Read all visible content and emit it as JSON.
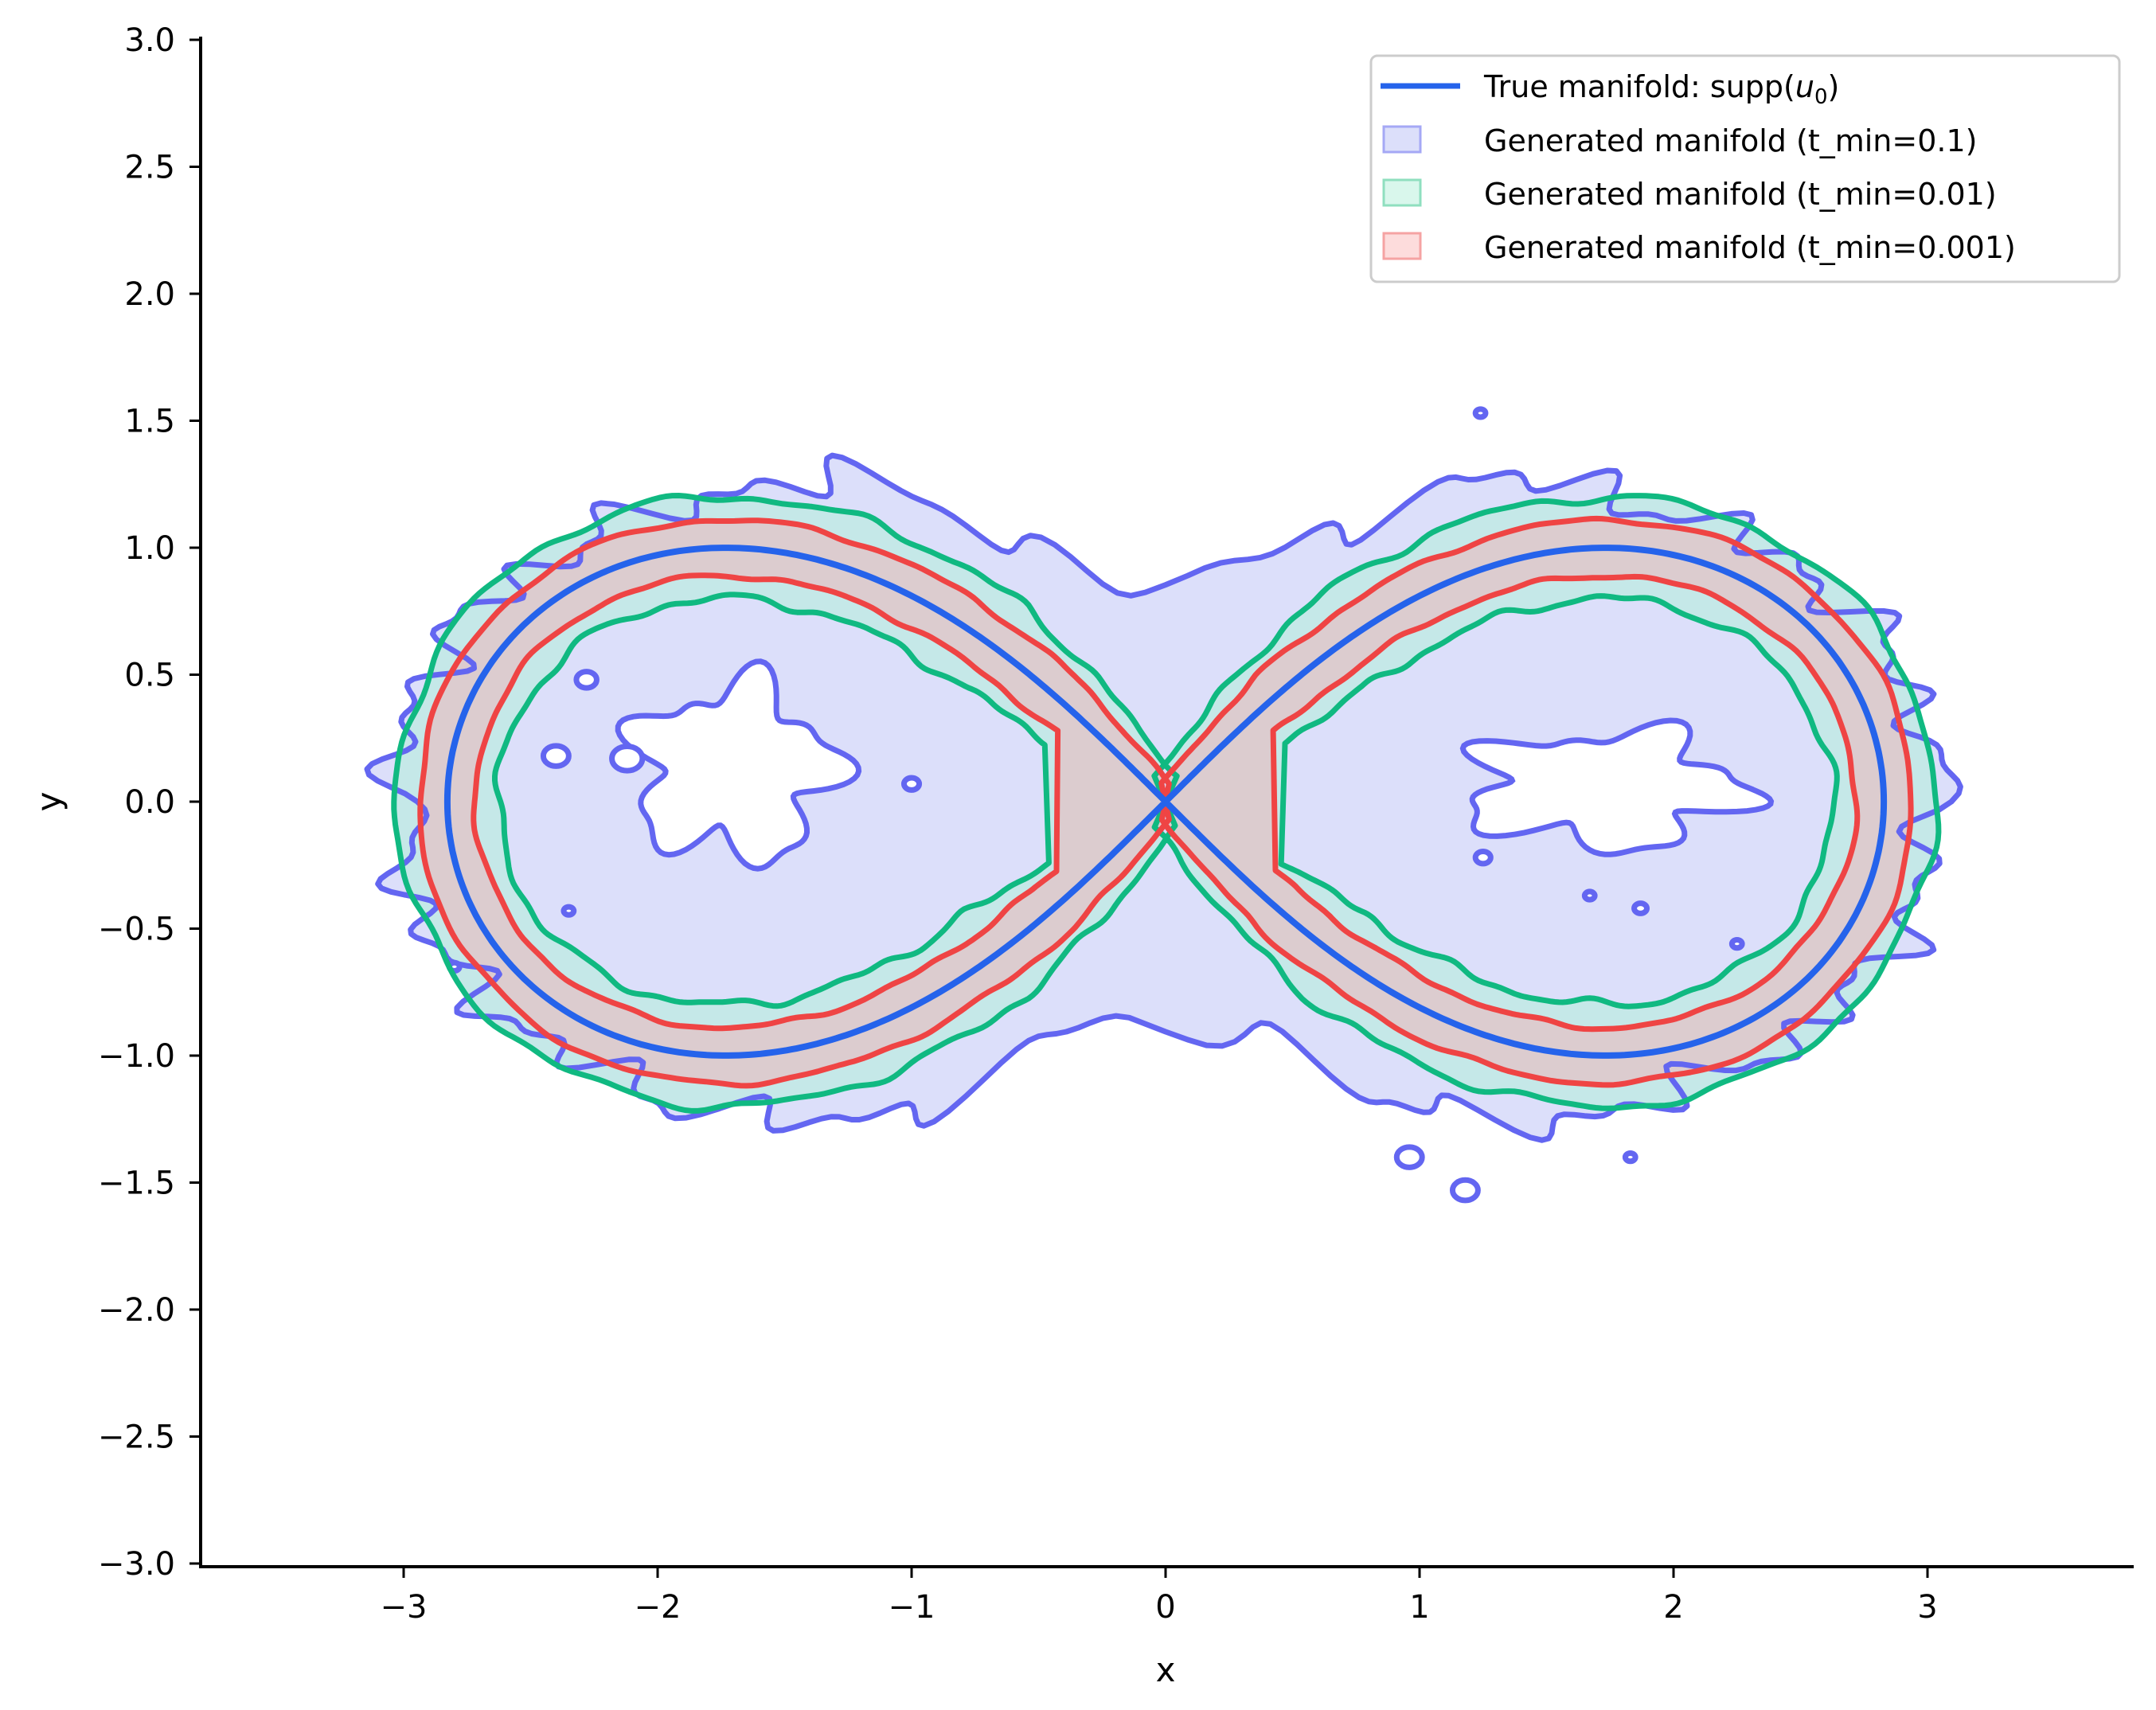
{
  "chart_data": {
    "type": "area",
    "title": "",
    "xlabel": "x",
    "ylabel": "y",
    "xlim": [
      -3.85,
      3.85
    ],
    "ylim": [
      -3.0,
      3.0
    ],
    "grid": false,
    "legend_position": "upper right",
    "x_ticks": [
      -3,
      -2,
      -1,
      0,
      1,
      2,
      3
    ],
    "x_tick_labels": [
      "−3",
      "−2",
      "−1",
      "0",
      "1",
      "2",
      "3"
    ],
    "y_ticks": [
      3.0,
      2.5,
      2.0,
      1.5,
      1.0,
      0.5,
      0.0,
      -0.5,
      -1.0,
      -1.5,
      -2.0,
      -2.5,
      -3.0
    ],
    "y_tick_labels": [
      "3.0",
      "2.5",
      "2.0",
      "1.5",
      "1.0",
      "0.5",
      "0.0",
      "−0.5",
      "−1.0",
      "−1.5",
      "−2.0",
      "−2.5",
      "−3.0"
    ],
    "true_manifold": {
      "name": "True manifold: supp(u₀)",
      "curve": "lemniscate of Bernoulli",
      "a": 2.828,
      "x_extent": [
        -2.83,
        2.83
      ],
      "y_extent": [
        -1.0,
        1.0
      ],
      "lobe_peaks": [
        [
          -1.73,
          1.0
        ],
        [
          1.73,
          1.0
        ],
        [
          -1.73,
          -1.0
        ],
        [
          1.73,
          -1.0
        ]
      ],
      "color": "#2563eb"
    },
    "series": [
      {
        "name": "Generated manifold (t_min=0.1)",
        "t_min": 0.1,
        "band_halfwidth": 0.5,
        "x_extent": [
          -3.07,
          3.1
        ],
        "y_extent": [
          -1.62,
          1.56
        ],
        "has_holes": true,
        "fill": "#dcdffa",
        "edge": "#6366f1",
        "legend_fill": "#dcdffa",
        "legend_edge": "#a5a8f5"
      },
      {
        "name": "Generated manifold (t_min=0.01)",
        "t_min": 0.01,
        "band_halfwidth": 0.2,
        "x_extent": [
          -3.0,
          3.0
        ],
        "y_extent": [
          -1.2,
          1.2
        ],
        "fill": "#c5e8e8",
        "edge": "#10b981",
        "legend_fill": "#d9f7ec",
        "legend_edge": "#8fdfbf"
      },
      {
        "name": "Generated manifold (t_min=0.001)",
        "t_min": 0.001,
        "band_halfwidth": 0.11,
        "x_extent": [
          -2.94,
          2.94
        ],
        "y_extent": [
          -1.11,
          1.11
        ],
        "fill": "#dccccf",
        "edge": "#ef4444",
        "legend_fill": "#fddcdc",
        "legend_edge": "#f5a3a3"
      }
    ]
  },
  "legend": {
    "entries": [
      {
        "label": "True manifold: supp(",
        "sub_var": "u",
        "sub_index": "0",
        "suffix": ")"
      },
      {
        "label": "Generated manifold (t_min=0.1)"
      },
      {
        "label": "Generated manifold (t_min=0.01)"
      },
      {
        "label": "Generated manifold (t_min=0.001)"
      }
    ]
  }
}
